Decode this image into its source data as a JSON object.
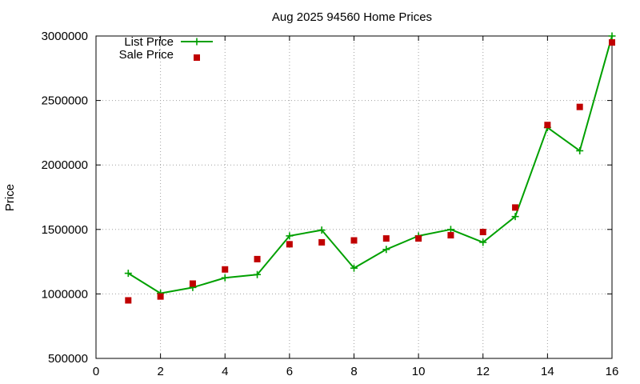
{
  "chart_data": {
    "type": "line",
    "title": "Aug 2025 94560 Home Prices",
    "xlabel": "",
    "ylabel": "Price",
    "xlim": [
      0,
      16
    ],
    "ylim": [
      500000,
      3000000
    ],
    "xticks": [
      0,
      2,
      4,
      6,
      8,
      10,
      12,
      14,
      16
    ],
    "yticks": [
      500000,
      1000000,
      1500000,
      2000000,
      2500000,
      3000000
    ],
    "grid": true,
    "legend_position": "top-left",
    "series": [
      {
        "name": "List Price",
        "style": "line+plus-markers",
        "color": "#00a000",
        "x": [
          1,
          2,
          3,
          4,
          5,
          6,
          7,
          8,
          9,
          10,
          11,
          12,
          13,
          14,
          15,
          16
        ],
        "values": [
          1160000,
          1005000,
          1050000,
          1125000,
          1150000,
          1450000,
          1495000,
          1200000,
          1345000,
          1450000,
          1500000,
          1400000,
          1600000,
          2290000,
          2110000,
          3000000
        ]
      },
      {
        "name": "Sale Price",
        "style": "square-markers",
        "color": "#c00000",
        "x": [
          1,
          2,
          3,
          4,
          5,
          6,
          7,
          8,
          9,
          10,
          11,
          12,
          13,
          14,
          15,
          16
        ],
        "values": [
          950000,
          980000,
          1080000,
          1190000,
          1270000,
          1385000,
          1400000,
          1415000,
          1430000,
          1430000,
          1455000,
          1480000,
          1670000,
          2310000,
          2450000,
          2950000
        ]
      }
    ]
  }
}
